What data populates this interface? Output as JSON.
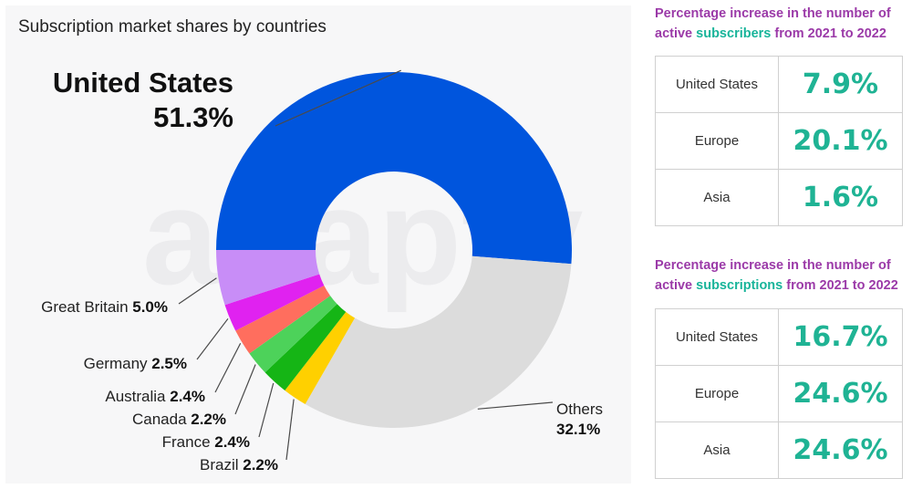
{
  "chart_data": {
    "type": "pie",
    "variant": "donut",
    "title": "Subscription market shares by countries",
    "unit": "%",
    "slices": [
      {
        "name": "United States",
        "value": 51.3,
        "label": "51.3%",
        "color": "#0055dd"
      },
      {
        "name": "Others",
        "value": 32.1,
        "label": "32.1%",
        "color": "#dcdcdc"
      },
      {
        "name": "Brazil",
        "value": 2.2,
        "label": "2.2%",
        "color": "#ffd000"
      },
      {
        "name": "France",
        "value": 2.4,
        "label": "2.4%",
        "color": "#15b515"
      },
      {
        "name": "Canada",
        "value": 2.2,
        "label": "2.2%",
        "color": "#4dd25a"
      },
      {
        "name": "Australia",
        "value": 2.4,
        "label": "2.4%",
        "color": "#ff6e5e"
      },
      {
        "name": "Germany",
        "value": 2.5,
        "label": "2.5%",
        "color": "#e022f0"
      },
      {
        "name": "Great Britain",
        "value": 5.0,
        "label": "5.0%",
        "color": "#c88df7"
      }
    ],
    "legend": "none"
  },
  "watermark": "adapty",
  "subscribers_panel": {
    "heading_pre": "Percentage increase in the number of active ",
    "heading_accent": "subscribers",
    "heading_post": " from 2021 to 2022",
    "rows": [
      {
        "region": "United States",
        "value": "7.9%"
      },
      {
        "region": "Europe",
        "value": "20.1%"
      },
      {
        "region": "Asia",
        "value": "1.6%"
      }
    ]
  },
  "subscriptions_panel": {
    "heading_pre": "Percentage increase in the number of active ",
    "heading_accent": "subscriptions",
    "heading_post": " from 2021 to 2022",
    "rows": [
      {
        "region": "United States",
        "value": "16.7%"
      },
      {
        "region": "Europe",
        "value": "24.6%"
      },
      {
        "region": "Asia",
        "value": "24.6%"
      }
    ]
  }
}
